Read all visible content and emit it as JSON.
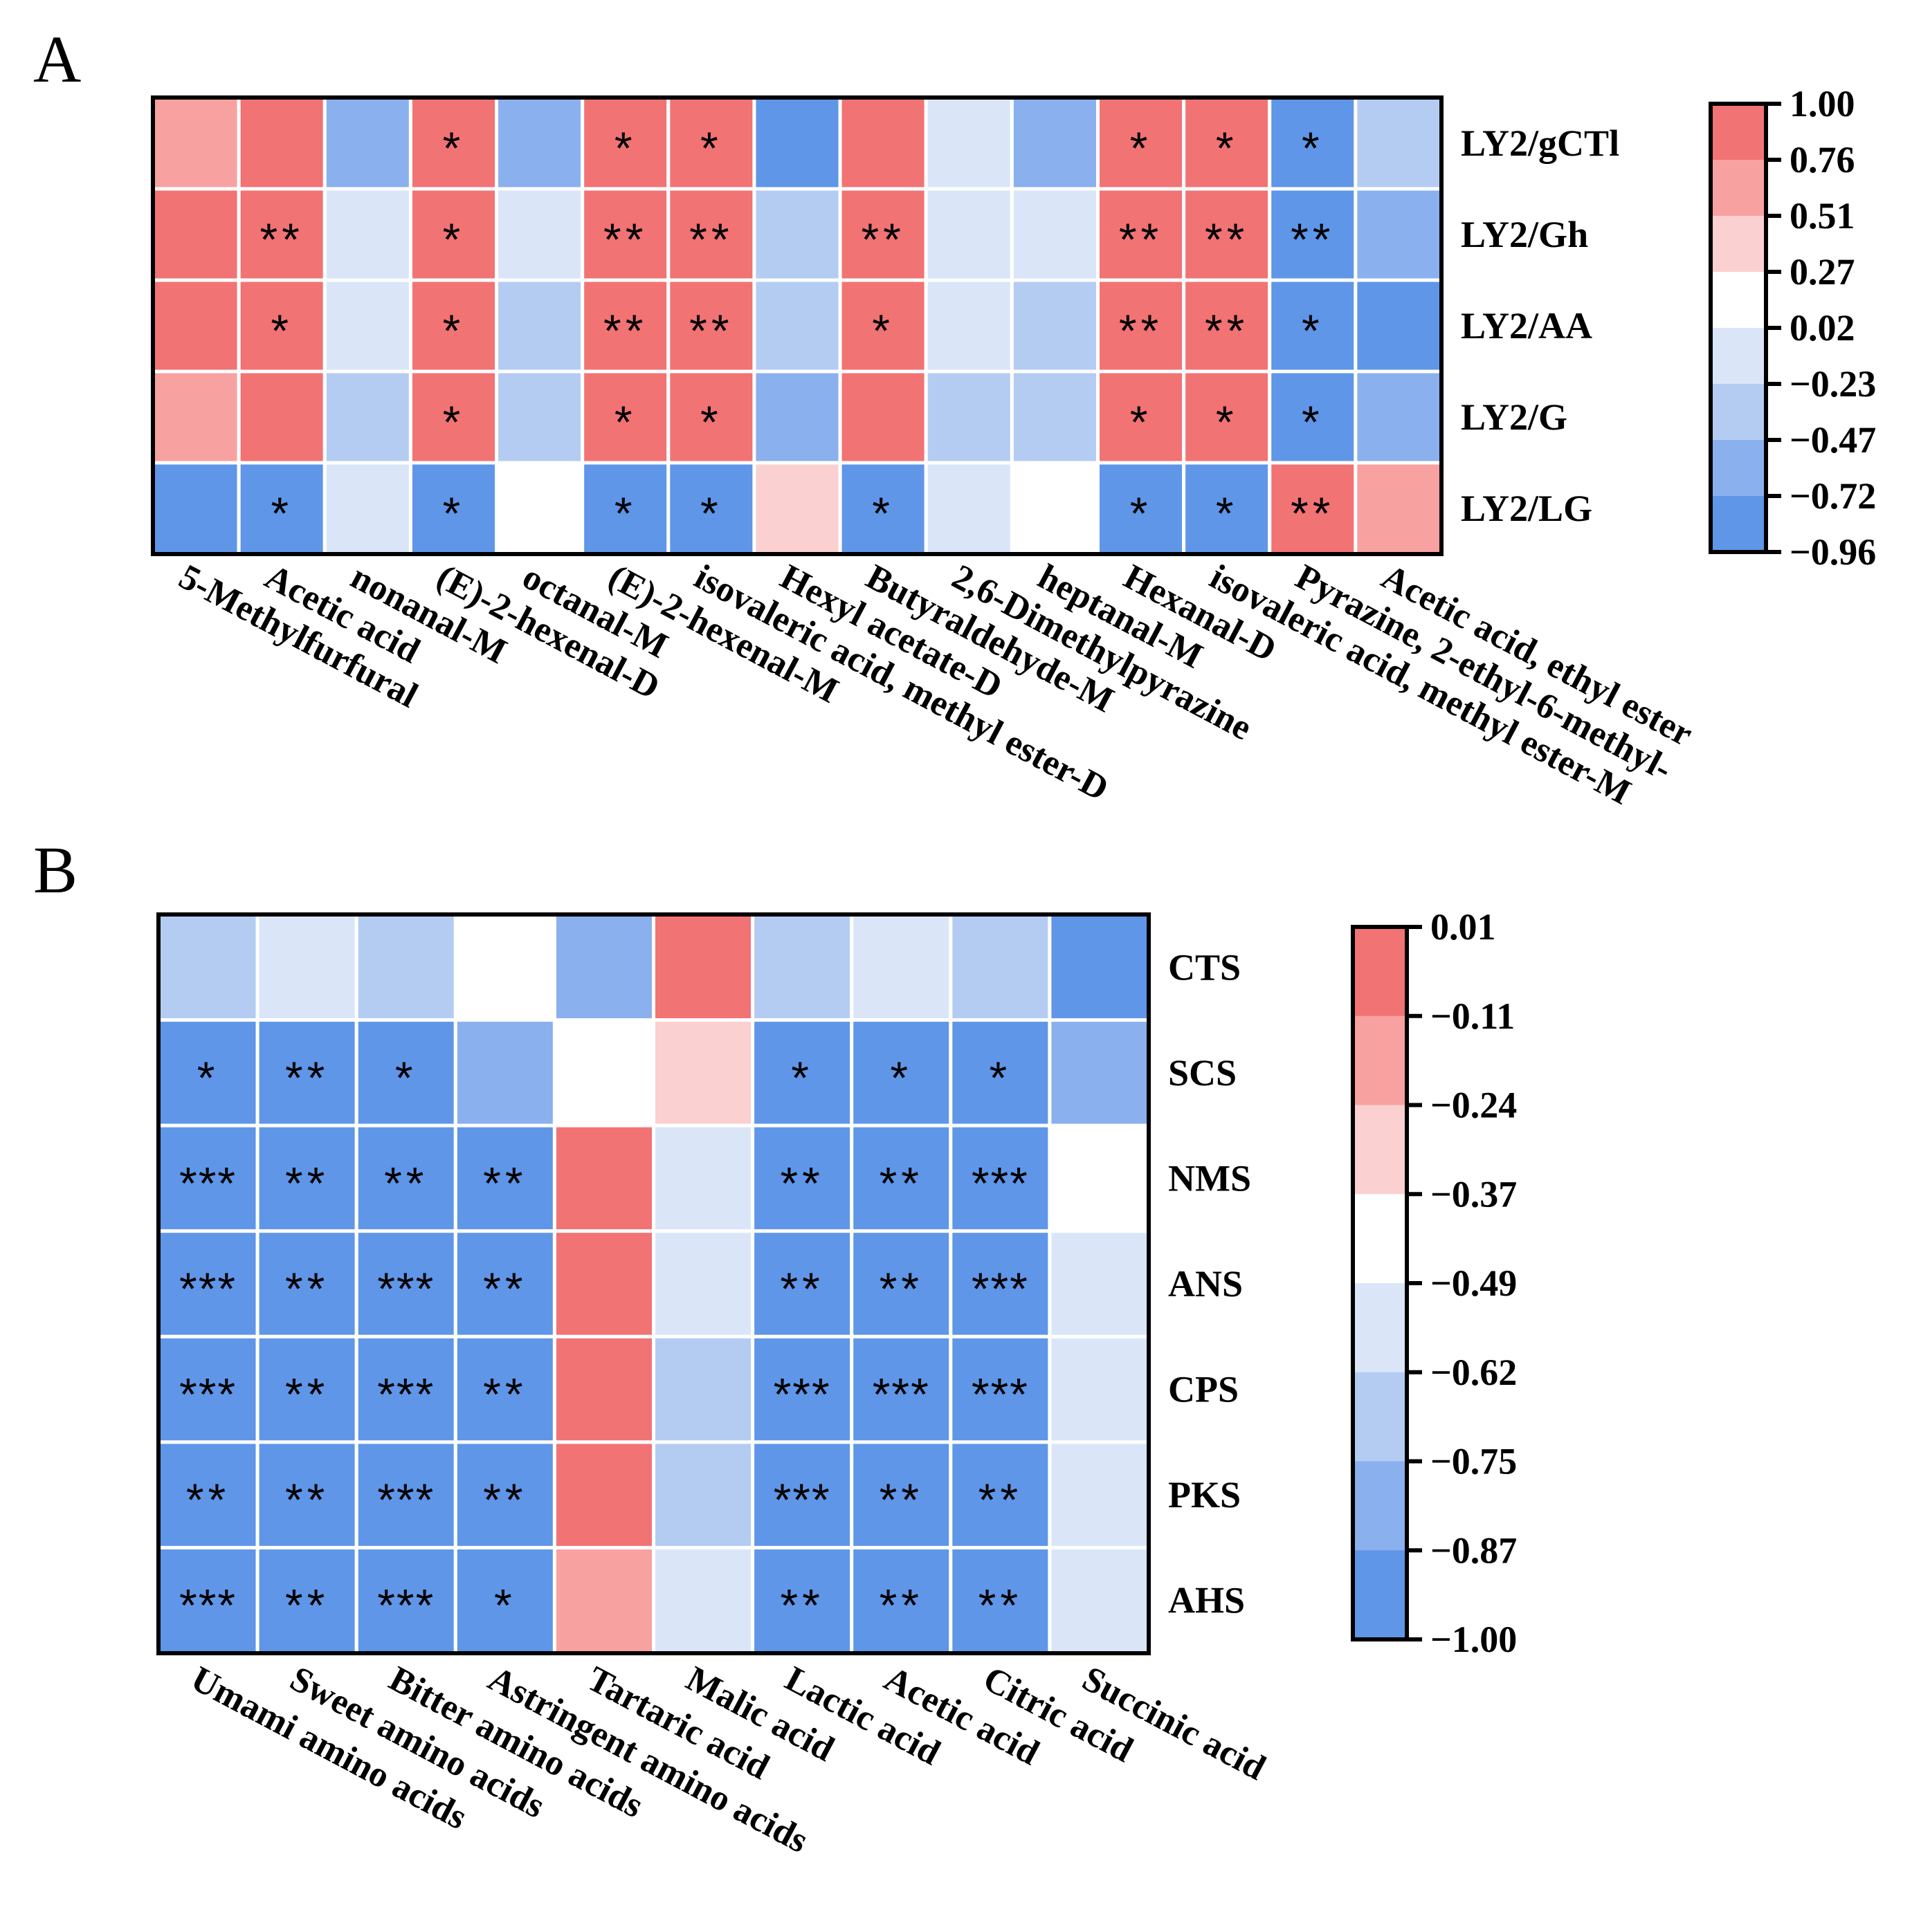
{
  "chart_data": [
    {
      "type": "heatmap",
      "panel": "A",
      "rows": [
        "LY2/gCTl",
        "LY2/Gh",
        "LY2/AA",
        "LY2/G",
        "LY2/LG"
      ],
      "columns": [
        "5-Methylfurfural",
        "Acetic acid",
        "nonanal-M",
        "(E)-2-hexenal-D",
        "octanal-M",
        "(E)-2-hexenal-M",
        "isovaleric acid, methyl ester-D",
        "Hexyl acetate-D",
        "Butyraldehyde-M",
        "2,6-Dimethylpyrazine",
        "heptanal-M",
        "Hexanal-D",
        "isovaleric acid, methyl ester-M",
        "Pyrazine, 2-ethyl-6-methyl-",
        "Acetic acid, ethyl ester"
      ],
      "values": [
        [
          0.6,
          0.95,
          -0.65,
          0.9,
          -0.65,
          0.9,
          0.9,
          -0.9,
          0.95,
          -0.2,
          -0.65,
          0.95,
          0.95,
          -0.85,
          -0.4
        ],
        [
          0.95,
          0.95,
          -0.2,
          0.9,
          -0.2,
          0.95,
          0.95,
          -0.4,
          0.95,
          -0.2,
          -0.2,
          0.95,
          0.95,
          -0.9,
          -0.65
        ],
        [
          0.95,
          0.95,
          -0.2,
          0.9,
          -0.4,
          0.95,
          0.95,
          -0.4,
          0.95,
          -0.2,
          -0.4,
          0.95,
          0.95,
          -0.9,
          -0.9
        ],
        [
          0.6,
          0.95,
          -0.4,
          0.9,
          -0.4,
          0.9,
          0.9,
          -0.65,
          0.95,
          -0.4,
          -0.4,
          0.95,
          0.95,
          -0.85,
          -0.65
        ],
        [
          -0.9,
          -0.9,
          -0.2,
          -0.9,
          0.1,
          -0.9,
          -0.9,
          0.4,
          -0.9,
          -0.2,
          0.1,
          -0.9,
          -0.9,
          0.95,
          0.6
        ]
      ],
      "significance": [
        [
          "",
          "",
          "",
          "*",
          "",
          "*",
          "*",
          "",
          "",
          "",
          "",
          "*",
          "*",
          "*",
          ""
        ],
        [
          "",
          "**",
          "",
          "*",
          "",
          "**",
          "**",
          "",
          "**",
          "",
          "",
          "**",
          "**",
          "**",
          ""
        ],
        [
          "",
          "*",
          "",
          "*",
          "",
          "**",
          "**",
          "",
          "*",
          "",
          "",
          "**",
          "**",
          "*",
          ""
        ],
        [
          "",
          "",
          "",
          "*",
          "",
          "*",
          "*",
          "",
          "",
          "",
          "",
          "*",
          "*",
          "*",
          ""
        ],
        [
          "",
          "*",
          "",
          "*",
          "",
          "*",
          "*",
          "",
          "*",
          "",
          "",
          "*",
          "*",
          "**",
          ""
        ]
      ],
      "colorbar_ticks": [
        "1.00",
        "0.76",
        "0.51",
        "0.27",
        "0.02",
        "−0.23",
        "−0.47",
        "−0.72",
        "−0.96"
      ],
      "colorbar_colors": [
        "#f27374",
        "#f8a1a1",
        "#fbd0d0",
        "#ffffff",
        "#dae6f8",
        "#b4ccf2",
        "#8bb0ee",
        "#5f96e8"
      ]
    },
    {
      "type": "heatmap",
      "panel": "B",
      "rows": [
        "CTS",
        "SCS",
        "NMS",
        "ANS",
        "CPS",
        "PKS",
        "AHS"
      ],
      "columns": [
        "Umami amino acids",
        "Sweet amino acids",
        "Bitter amino acids",
        "Astringent amino acids",
        "Tartaric acid",
        "Malic acid",
        "Lactic acid",
        "Acetic acid",
        "Citric acid",
        "Succinic acid"
      ],
      "values": [
        [
          -0.7,
          -0.55,
          -0.7,
          -0.43,
          -0.8,
          -0.05,
          -0.7,
          -0.55,
          -0.7,
          -0.95
        ],
        [
          -0.95,
          -0.95,
          -0.95,
          -0.8,
          -0.43,
          -0.3,
          -0.95,
          -0.95,
          -0.95,
          -0.8
        ],
        [
          -0.95,
          -0.95,
          -0.95,
          -0.95,
          -0.05,
          -0.55,
          -0.95,
          -0.95,
          -0.95,
          -0.43
        ],
        [
          -0.95,
          -0.95,
          -0.95,
          -0.95,
          -0.05,
          -0.55,
          -0.95,
          -0.95,
          -0.95,
          -0.55
        ],
        [
          -0.95,
          -0.95,
          -0.95,
          -0.95,
          -0.05,
          -0.7,
          -0.95,
          -0.95,
          -0.95,
          -0.55
        ],
        [
          -0.95,
          -0.95,
          -0.95,
          -0.95,
          -0.05,
          -0.7,
          -0.95,
          -0.95,
          -0.95,
          -0.55
        ],
        [
          -0.95,
          -0.95,
          -0.95,
          -0.95,
          -0.18,
          -0.55,
          -0.95,
          -0.95,
          -0.95,
          -0.55
        ]
      ],
      "significance": [
        [
          "",
          "",
          "",
          "",
          "",
          "",
          "",
          "",
          "",
          ""
        ],
        [
          "*",
          "**",
          "*",
          "",
          "",
          "",
          "*",
          "*",
          "*",
          ""
        ],
        [
          "***",
          "**",
          "**",
          "**",
          "",
          "",
          "**",
          "**",
          "***",
          ""
        ],
        [
          "***",
          "**",
          "***",
          "**",
          "",
          "",
          "**",
          "**",
          "***",
          ""
        ],
        [
          "***",
          "**",
          "***",
          "**",
          "",
          "",
          "***",
          "***",
          "***",
          ""
        ],
        [
          "**",
          "**",
          "***",
          "**",
          "",
          "",
          "***",
          "**",
          "**",
          ""
        ],
        [
          "***",
          "**",
          "***",
          "*",
          "",
          "",
          "**",
          "**",
          "**",
          ""
        ]
      ],
      "colorbar_ticks": [
        "0.01",
        "−0.11",
        "−0.24",
        "−0.37",
        "−0.49",
        "−0.62",
        "−0.75",
        "−0.87",
        "−1.00"
      ],
      "colorbar_colors": [
        "#f27374",
        "#f8a1a1",
        "#fbd0d0",
        "#ffffff",
        "#dae6f8",
        "#b4ccf2",
        "#8bb0ee",
        "#5f96e8"
      ]
    }
  ],
  "panel_labels": [
    "A",
    "B"
  ]
}
